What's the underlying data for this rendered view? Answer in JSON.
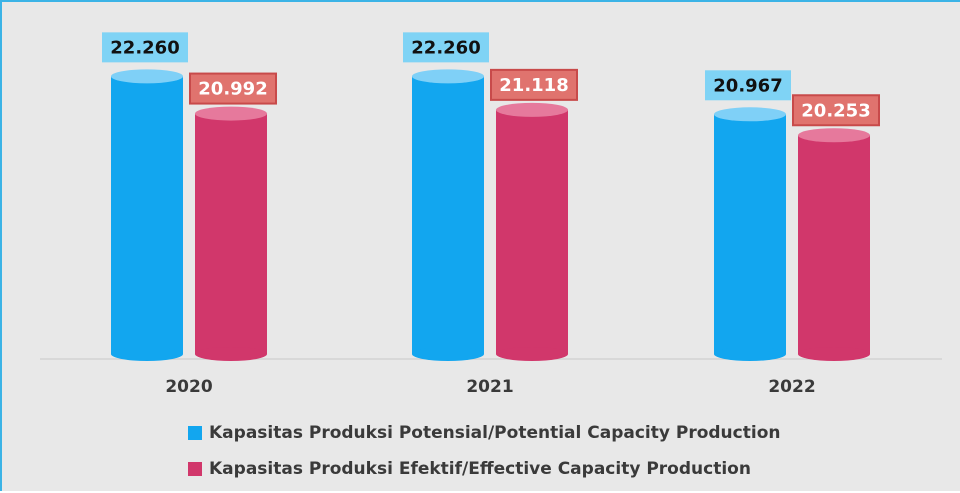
{
  "chart_data": {
    "type": "bar",
    "style": "3d-cylinder",
    "categories": [
      "2020",
      "2021",
      "2022"
    ],
    "series": [
      {
        "name": "Kapasitas Produksi Potensial/Potential Capacity Production",
        "values": [
          22260,
          22260,
          20967
        ],
        "labels": [
          "22.260",
          "22.260",
          "20.967"
        ],
        "color": "#12a6ef",
        "top_color": "#7fd0f7",
        "label_bg": "#7fd3f5"
      },
      {
        "name": "Kapasitas Produksi Efektif/Effective Capacity Production",
        "values": [
          20992,
          21118,
          20253
        ],
        "labels": [
          "20.992",
          "21.118",
          "20.253"
        ],
        "color": "#d1376b",
        "top_color": "#e6799c",
        "label_bg": "#e0736e",
        "label_border": "#c84a4a"
      }
    ],
    "title": "",
    "xlabel": "",
    "ylabel": "",
    "grid": false,
    "legend_position": "bottom"
  }
}
